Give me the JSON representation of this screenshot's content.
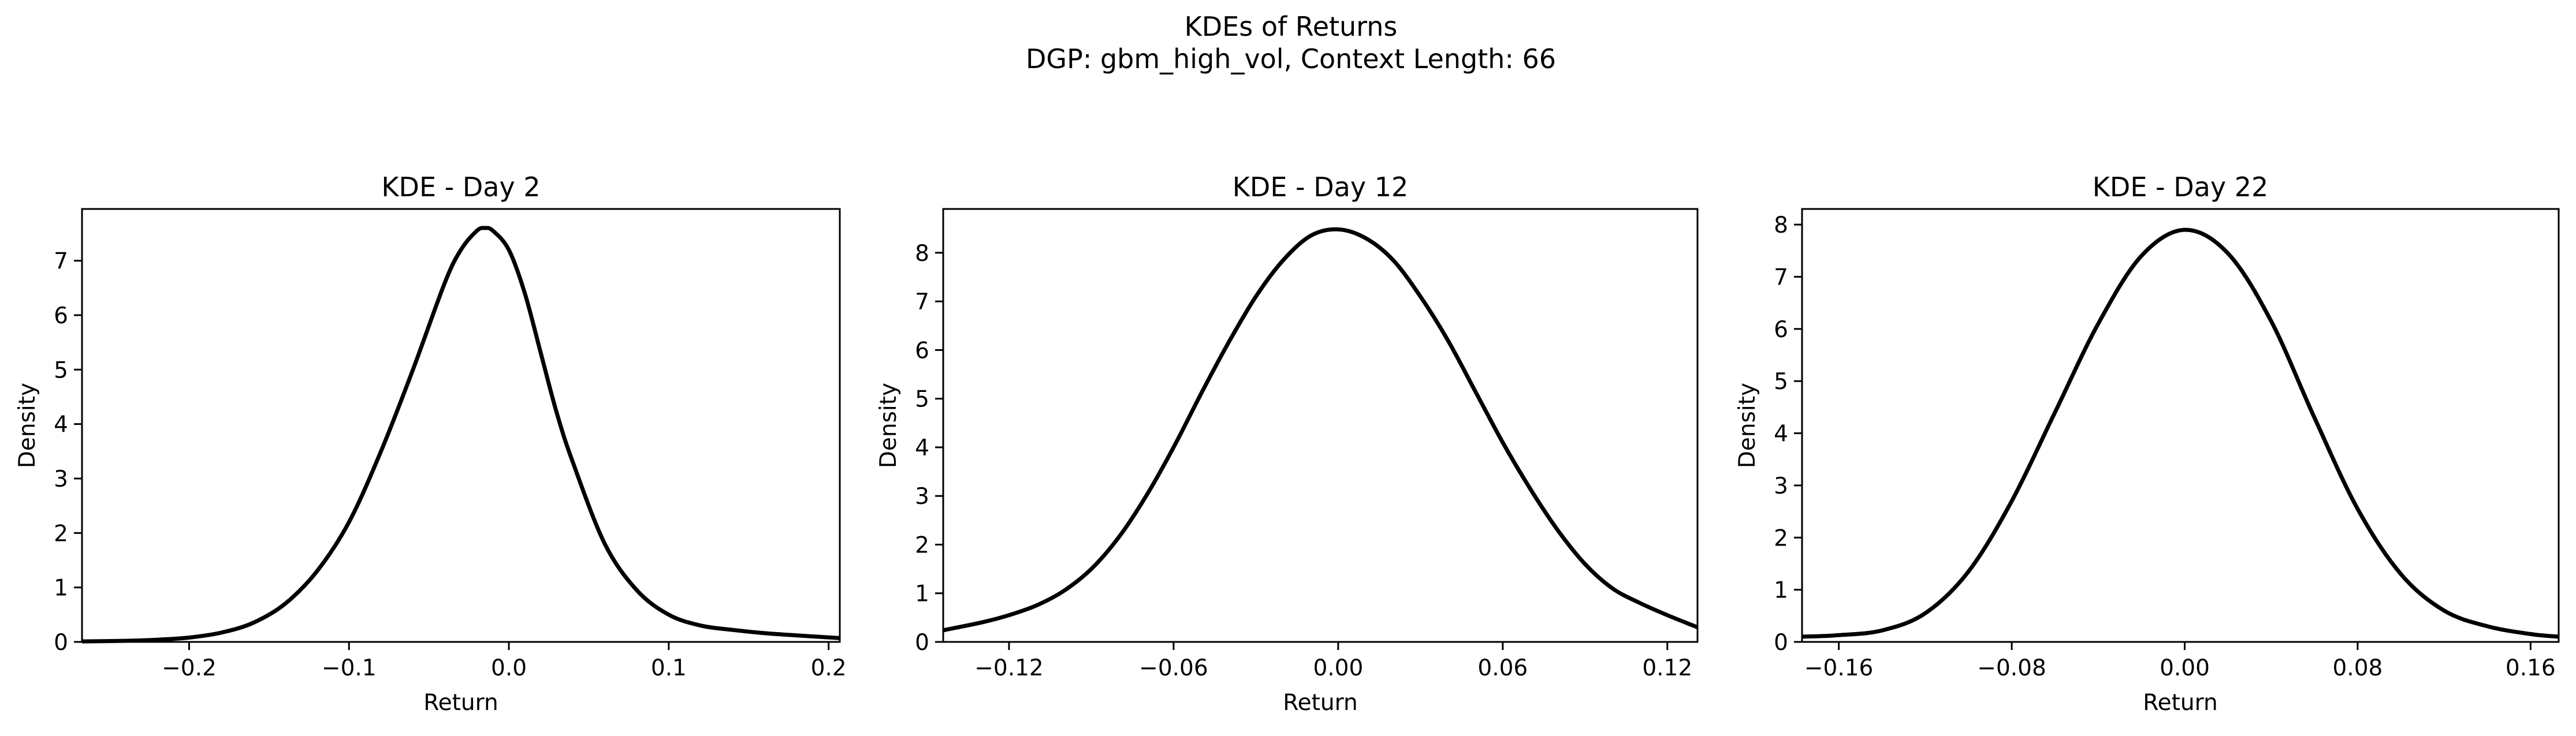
{
  "figure": {
    "title_line1": "KDEs of Returns",
    "title_line2": "DGP: gbm_high_vol, Context Length: 66"
  },
  "chart_data": [
    {
      "type": "line",
      "title": "KDE - Day 2",
      "xlabel": "Return",
      "ylabel": "Density",
      "xlim": [
        -0.267,
        0.207
      ],
      "ylim": [
        0,
        7.95
      ],
      "xticks": [
        -0.2,
        -0.1,
        0.0,
        0.1,
        0.2
      ],
      "xtick_labels": [
        "−0.2",
        "−0.1",
        "0.0",
        "0.1",
        "0.2"
      ],
      "yticks": [
        0,
        1,
        2,
        3,
        4,
        5,
        6,
        7
      ],
      "ytick_labels": [
        "0",
        "1",
        "2",
        "3",
        "4",
        "5",
        "6",
        "7"
      ],
      "grid": false,
      "color": "#000000",
      "x": [
        -0.267,
        -0.24,
        -0.22,
        -0.2,
        -0.18,
        -0.16,
        -0.14,
        -0.12,
        -0.1,
        -0.08,
        -0.06,
        -0.04,
        -0.03,
        -0.02,
        -0.015,
        -0.01,
        0.0,
        0.01,
        0.02,
        0.03,
        0.04,
        0.06,
        0.08,
        0.1,
        0.12,
        0.14,
        0.16,
        0.18,
        0.207
      ],
      "y": [
        0.01,
        0.02,
        0.04,
        0.08,
        0.17,
        0.35,
        0.7,
        1.3,
        2.2,
        3.5,
        5.0,
        6.6,
        7.2,
        7.55,
        7.6,
        7.55,
        7.2,
        6.4,
        5.3,
        4.2,
        3.3,
        1.8,
        0.95,
        0.5,
        0.3,
        0.22,
        0.16,
        0.12,
        0.07
      ]
    },
    {
      "type": "line",
      "title": "KDE - Day 12",
      "xlabel": "Return",
      "ylabel": "Density",
      "xlim": [
        -0.144,
        0.131
      ],
      "ylim": [
        0,
        8.9
      ],
      "xticks": [
        -0.12,
        -0.06,
        0.0,
        0.06,
        0.12
      ],
      "xtick_labels": [
        "−0.12",
        "−0.06",
        "0.00",
        "0.06",
        "0.12"
      ],
      "yticks": [
        0,
        1,
        2,
        3,
        4,
        5,
        6,
        7,
        8
      ],
      "ytick_labels": [
        "0",
        "1",
        "2",
        "3",
        "4",
        "5",
        "6",
        "7",
        "8"
      ],
      "grid": false,
      "color": "#000000",
      "x": [
        -0.144,
        -0.13,
        -0.12,
        -0.11,
        -0.1,
        -0.09,
        -0.08,
        -0.07,
        -0.06,
        -0.05,
        -0.04,
        -0.03,
        -0.02,
        -0.01,
        0.0,
        0.01,
        0.02,
        0.03,
        0.04,
        0.05,
        0.06,
        0.07,
        0.08,
        0.09,
        0.1,
        0.11,
        0.12,
        0.131
      ],
      "y": [
        0.24,
        0.4,
        0.55,
        0.75,
        1.05,
        1.5,
        2.15,
        3.0,
        4.0,
        5.1,
        6.15,
        7.1,
        7.85,
        8.35,
        8.48,
        8.3,
        7.85,
        7.1,
        6.2,
        5.15,
        4.1,
        3.15,
        2.3,
        1.6,
        1.1,
        0.8,
        0.55,
        0.3
      ]
    },
    {
      "type": "line",
      "title": "KDE - Day 22",
      "xlabel": "Return",
      "ylabel": "Density",
      "xlim": [
        -0.177,
        0.173
      ],
      "ylim": [
        0,
        8.3
      ],
      "xticks": [
        -0.16,
        -0.08,
        0.0,
        0.08,
        0.16
      ],
      "xtick_labels": [
        "−0.16",
        "−0.08",
        "0.00",
        "0.08",
        "0.16"
      ],
      "yticks": [
        0,
        1,
        2,
        3,
        4,
        5,
        6,
        7,
        8
      ],
      "ytick_labels": [
        "0",
        "1",
        "2",
        "3",
        "4",
        "5",
        "6",
        "7",
        "8"
      ],
      "grid": false,
      "color": "#000000",
      "x": [
        -0.177,
        -0.16,
        -0.14,
        -0.12,
        -0.1,
        -0.08,
        -0.06,
        -0.04,
        -0.02,
        0.0,
        0.02,
        0.04,
        0.06,
        0.08,
        0.1,
        0.12,
        0.14,
        0.16,
        0.173
      ],
      "y": [
        0.1,
        0.13,
        0.22,
        0.55,
        1.35,
        2.7,
        4.4,
        6.1,
        7.4,
        7.9,
        7.45,
        6.15,
        4.3,
        2.55,
        1.3,
        0.6,
        0.3,
        0.15,
        0.1
      ]
    }
  ]
}
